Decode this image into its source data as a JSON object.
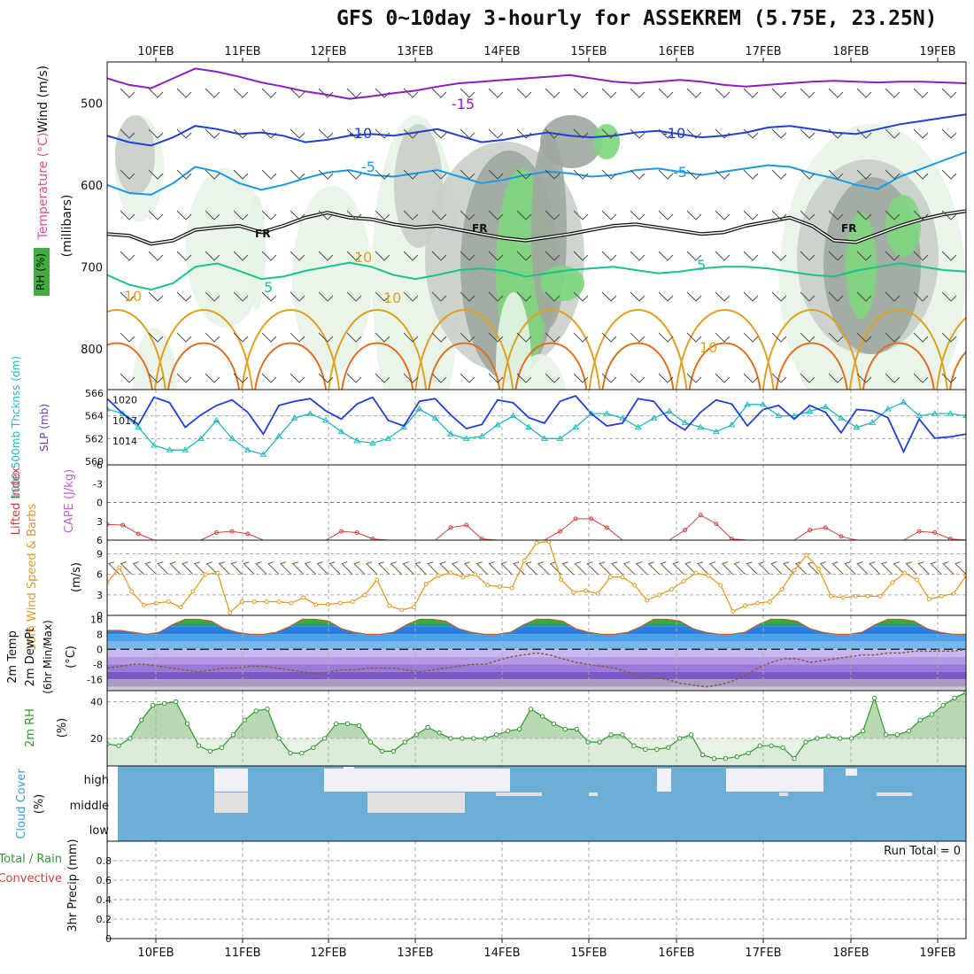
{
  "title": "GFS 0~10day 3-hourly for ASSEKREM (5.75E, 23.25N)",
  "chart_data": [
    {
      "panel": "upper_air",
      "type": "heatmap",
      "x_tick_labels": [
        "10FEB",
        "11FEB",
        "12FEB",
        "13FEB",
        "14FEB",
        "15FEB",
        "16FEB",
        "17FEB",
        "18FEB",
        "19FEB"
      ],
      "y_ticks": [
        "500",
        "600",
        "700",
        "800"
      ],
      "ylim": [
        450,
        850
      ],
      "ylabel": "(millibars)",
      "labels": [
        "Wind (m/s)",
        "Temperature (°C)",
        "RH (%)"
      ],
      "contour_labels": [
        "-15",
        "-10",
        "-10",
        "-5",
        "-5",
        "FR",
        "FR",
        "FR",
        "5",
        "5",
        "10",
        "10",
        "10",
        "10"
      ],
      "rh_shading_colors": [
        "#e6f4e6",
        "#c9cfc9",
        "#9fa89f",
        "#7ed67e",
        "#3fae3f"
      ],
      "isotherms": [
        {
          "name": "-15",
          "color": "#8a1fbf",
          "p": [
            470,
            478,
            482,
            470,
            458,
            462,
            468,
            475,
            480,
            486,
            490,
            495,
            492,
            488,
            485,
            480,
            476,
            474,
            472,
            470,
            468,
            466,
            470,
            474,
            476,
            474,
            472,
            474,
            478,
            480,
            478,
            476,
            474,
            473,
            474,
            475,
            474,
            474,
            475,
            476
          ]
        },
        {
          "name": "-10",
          "color": "#1f3fd6",
          "p": [
            540,
            548,
            552,
            542,
            528,
            532,
            538,
            536,
            540,
            548,
            545,
            540,
            538,
            540,
            536,
            532,
            540,
            548,
            545,
            540,
            536,
            540,
            542,
            540,
            536,
            534,
            538,
            542,
            540,
            536,
            530,
            528,
            532,
            536,
            538,
            532,
            526,
            522,
            518,
            514
          ]
        },
        {
          "name": "-5",
          "color": "#1a9ae6",
          "p": [
            600,
            610,
            612,
            598,
            578,
            584,
            598,
            606,
            600,
            592,
            585,
            582,
            588,
            590,
            586,
            582,
            590,
            598,
            594,
            588,
            584,
            586,
            590,
            588,
            582,
            580,
            584,
            588,
            584,
            580,
            576,
            578,
            586,
            592,
            600,
            605,
            590,
            580,
            570,
            560
          ]
        },
        {
          "name": "FR",
          "color": "#111111",
          "p": [
            660,
            662,
            672,
            668,
            655,
            652,
            650,
            658,
            650,
            640,
            634,
            640,
            642,
            648,
            652,
            650,
            655,
            660,
            665,
            668,
            664,
            660,
            655,
            650,
            648,
            652,
            656,
            660,
            658,
            650,
            645,
            640,
            650,
            668,
            670,
            660,
            650,
            642,
            636,
            632
          ]
        },
        {
          "name": "5",
          "color": "#18c48a",
          "p": [
            710,
            722,
            728,
            720,
            700,
            696,
            705,
            715,
            712,
            705,
            700,
            695,
            700,
            710,
            715,
            710,
            704,
            702,
            705,
            712,
            708,
            704,
            702,
            700,
            704,
            708,
            706,
            702,
            700,
            700,
            702,
            706,
            710,
            712,
            705,
            700,
            696,
            700,
            704,
            706
          ]
        }
      ]
    },
    {
      "panel": "thickness_slp",
      "type": "line",
      "x_tick_labels": [
        "10FEB",
        "11FEB",
        "12FEB",
        "13FEB",
        "14FEB",
        "15FEB",
        "16FEB",
        "17FEB",
        "18FEB",
        "19FEB"
      ],
      "ylabels": [
        "1000-500mb Thcknss (dm)",
        "SLP (mb)"
      ],
      "left_ticks": [
        "566",
        "564",
        "562",
        "560"
      ],
      "right_ticks": [
        "1020",
        "1017",
        "1014"
      ],
      "ylim_left": [
        560,
        566
      ],
      "ylim_right": [
        1011,
        1021
      ],
      "series": [
        {
          "name": "1000-500mb Thcknss (dm)",
          "color": "#22b8c0",
          "values": [
            564.6,
            564.2,
            563.0,
            561.4,
            561.0,
            561.0,
            562.0,
            563.6,
            562.0,
            561.0,
            560.6,
            562.2,
            563.8,
            564.2,
            563.6,
            562.6,
            561.8,
            561.6,
            562.0,
            563.0,
            564.6,
            563.8,
            562.4,
            562.0,
            562.2,
            563.2,
            564.0,
            563.0,
            562.0,
            562.0,
            563.0,
            564.2,
            564.2,
            563.8,
            563.0,
            563.8,
            564.4,
            563.4,
            563.0,
            562.6,
            563.2,
            565.0,
            565.0,
            564.0,
            564.0,
            564.4,
            564.8,
            563.8,
            563.0,
            563.4,
            564.6,
            565.2,
            564.0,
            564.2,
            564.2,
            564.0
          ]
        },
        {
          "name": "SLP (mb)",
          "color": "#1f3fd6",
          "values": [
            1020.2,
            1018.0,
            1016.4,
            1020.4,
            1019.6,
            1016.0,
            1017.8,
            1019.2,
            1020.0,
            1018.2,
            1015.0,
            1019.2,
            1019.8,
            1020.2,
            1018.4,
            1017.2,
            1019.4,
            1020.4,
            1017.0,
            1016.2,
            1019.8,
            1020.2,
            1017.8,
            1015.8,
            1016.4,
            1020.0,
            1019.6,
            1017.4,
            1016.6,
            1019.8,
            1020.6,
            1018.0,
            1016.2,
            1016.6,
            1020.2,
            1019.8,
            1017.0,
            1015.6,
            1018.2,
            1020.0,
            1019.4,
            1016.2,
            1018.6,
            1019.2,
            1017.2,
            1019.2,
            1018.2,
            1015.2,
            1018.6,
            1018.4,
            1017.4,
            1012.4,
            1017.2,
            1014.4,
            1014.6,
            1015.0
          ]
        }
      ]
    },
    {
      "panel": "cape_li",
      "type": "line",
      "ylabels": [
        "Lifted Index",
        "CAPE (J/kg)"
      ],
      "y_ticks": [
        "-6",
        "-3",
        "0",
        "3",
        "6"
      ],
      "ylim": [
        -6,
        6
      ],
      "series": [
        {
          "name": "Lifted Index",
          "color": "#d63c3c",
          "values": [
            3.5,
            3.6,
            5.0,
            6,
            6,
            6,
            6,
            4.8,
            4.6,
            5.0,
            6,
            6,
            6,
            6,
            6,
            4.6,
            4.8,
            5.8,
            6,
            6,
            6,
            6,
            4.0,
            3.6,
            5.8,
            6,
            6,
            6,
            6,
            4.6,
            2.6,
            2.6,
            4.0,
            6,
            6,
            6,
            6,
            4.4,
            2.0,
            3.4,
            5.8,
            6,
            6,
            6,
            6,
            4.4,
            4.0,
            5.4,
            6,
            6,
            6,
            6,
            4.6,
            4.8,
            5.8,
            6
          ]
        }
      ]
    },
    {
      "panel": "wind10m",
      "type": "line",
      "ylabels": [
        "10m Wind Speed & Barbs",
        "(m/s)"
      ],
      "y_ticks": [
        "0",
        "3",
        "6",
        "9"
      ],
      "ylim": [
        0,
        11
      ],
      "series": [
        {
          "name": "10m Wind Speed",
          "color": "#e69a1f",
          "values": [
            4.8,
            7.0,
            3.5,
            1.5,
            1.8,
            2.0,
            1.2,
            3.5,
            6.0,
            6.2,
            0.4,
            2.0,
            2.0,
            2.0,
            2.0,
            1.8,
            2.6,
            1.6,
            1.6,
            1.8,
            2.0,
            3.0,
            5.2,
            1.4,
            0.8,
            1.2,
            4.6,
            5.8,
            6.2,
            5.6,
            6.0,
            4.4,
            4.2,
            4.0,
            8.0,
            10.6,
            10.8,
            5.2,
            3.4,
            3.6,
            3.2,
            5.6,
            5.6,
            4.4,
            2.2,
            3.0,
            3.8,
            5.0,
            6.2,
            5.8,
            4.4,
            0.6,
            1.4,
            1.8,
            2.0,
            3.8,
            6.6,
            8.8,
            6.8,
            2.8,
            2.6,
            2.8,
            2.8,
            2.8,
            4.8,
            6.2,
            5.2,
            2.4,
            2.8,
            3.2,
            5.8
          ]
        }
      ]
    },
    {
      "panel": "temp2m",
      "type": "area",
      "ylabels": [
        "2m Temp",
        "2m DewPt",
        "(6hr Min/Max)",
        "(°C)"
      ],
      "y_ticks": [
        "16",
        "8",
        "0",
        "-8",
        "-16"
      ],
      "ylim": [
        -22,
        18
      ],
      "series": [
        {
          "name": "2m Temp",
          "color": "#2a7de1",
          "values": [
            10,
            10,
            9,
            8,
            9,
            13,
            16,
            16,
            15,
            11,
            9,
            8,
            8,
            9,
            12,
            16,
            16,
            15,
            11,
            9,
            8,
            8,
            9,
            13,
            16,
            16,
            15,
            11,
            9,
            8,
            8,
            9,
            13,
            16,
            16,
            15,
            11,
            9,
            8,
            8,
            9,
            12,
            16,
            16,
            15,
            11,
            9,
            8,
            8,
            9,
            13,
            16,
            16,
            15,
            11,
            9,
            8,
            8,
            9,
            13,
            16,
            16,
            15,
            11,
            9,
            8,
            8
          ]
        },
        {
          "name": "2m DewPt",
          "color": "#8b5a3a",
          "values": [
            -10,
            -9,
            -8,
            -8,
            -9,
            -10,
            -11,
            -12,
            -11,
            -10,
            -10,
            -9,
            -9,
            -10,
            -11,
            -12,
            -13,
            -12,
            -11,
            -11,
            -10,
            -10,
            -10,
            -11,
            -12,
            -11,
            -10,
            -9,
            -8,
            -8,
            -6,
            -4,
            -3,
            -2,
            -3,
            -5,
            -7,
            -8,
            -9,
            -10,
            -12,
            -14,
            -15,
            -16,
            -18,
            -19,
            -20,
            -19,
            -17,
            -14,
            -10,
            -7,
            -5,
            -5,
            -7,
            -6,
            -5,
            -4,
            -3,
            -3,
            -2,
            -2,
            -1,
            -1,
            -1,
            -1,
            0
          ]
        }
      ]
    },
    {
      "panel": "rh2m",
      "type": "area",
      "ylabels": [
        "2m RH",
        "(%)"
      ],
      "y_ticks": [
        "20",
        "40"
      ],
      "ylim": [
        5,
        46
      ],
      "series": [
        {
          "name": "2m RH",
          "color": "#2e9a2e",
          "values": [
            17,
            16,
            20,
            30,
            38,
            39,
            40,
            28,
            16,
            13,
            15,
            22,
            30,
            35,
            36,
            20,
            12,
            12,
            15,
            20,
            28,
            28,
            27,
            18,
            13,
            13,
            18,
            22,
            26,
            23,
            20,
            20,
            20,
            20,
            22,
            24,
            25,
            36,
            32,
            28,
            25,
            25,
            18,
            18,
            22,
            22,
            16,
            14,
            14,
            15,
            20,
            22,
            11,
            9,
            9,
            10,
            12,
            16,
            16,
            15,
            9,
            18,
            20,
            21,
            20,
            20,
            24,
            42,
            22,
            22,
            24,
            30,
            33,
            38,
            42,
            45
          ]
        }
      ]
    },
    {
      "panel": "cloud",
      "type": "heatmap",
      "ylabels": [
        "Cloud Cover",
        "(%)"
      ],
      "layer_labels": [
        "high",
        "middle",
        "low"
      ],
      "colors": {
        "clear": "#6baed6",
        "cloud": "#f2f0f6",
        "gray": "#e0e0e0"
      }
    },
    {
      "panel": "precip",
      "type": "bar",
      "ylabels": [
        "3hr Precip (mm)",
        "Total / Rain",
        "Convective"
      ],
      "y_ticks": [
        "0",
        "0.2",
        "0.4",
        "0.6",
        "0.8"
      ],
      "ylim": [
        0,
        1
      ],
      "values": [],
      "run_total_text": "Run Total = 0"
    }
  ]
}
